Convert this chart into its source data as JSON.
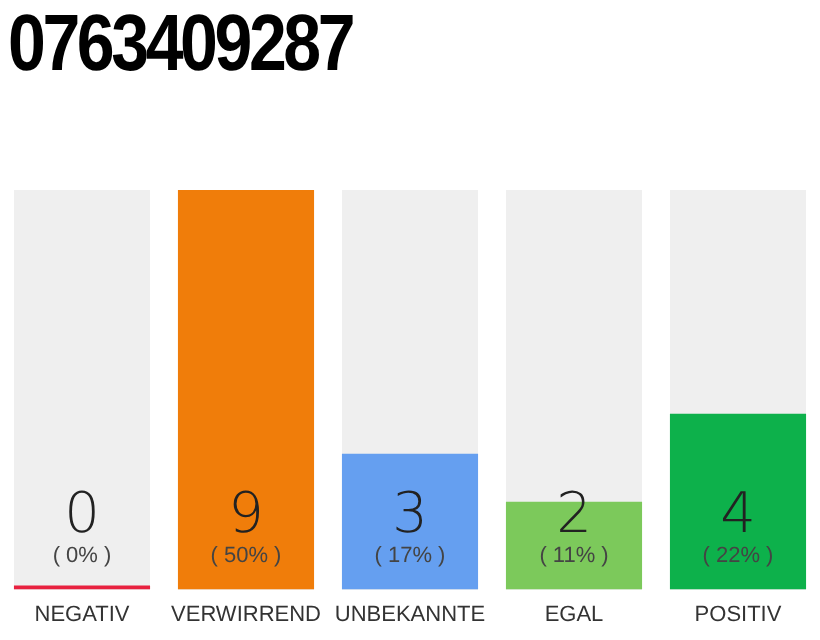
{
  "chart_data": {
    "type": "bar",
    "title": "0763409287",
    "categories": [
      "NEGATIV",
      "VERWIRREND",
      "UNBEKANNTE",
      "EGAL",
      "POSITIV"
    ],
    "values": [
      0,
      50,
      17,
      11,
      22
    ],
    "colors": [
      "#e8213f",
      "#f07d0a",
      "#659ff0",
      "#7cc95b",
      "#0db14b"
    ],
    "value_labels": [
      "( 0% )",
      "( 50% )",
      "( 17% )",
      "( 11% )",
      "( 22% )"
    ],
    "annotations": [
      "0",
      "9",
      "3",
      "2",
      "4"
    ],
    "grid": false,
    "legend": false
  }
}
